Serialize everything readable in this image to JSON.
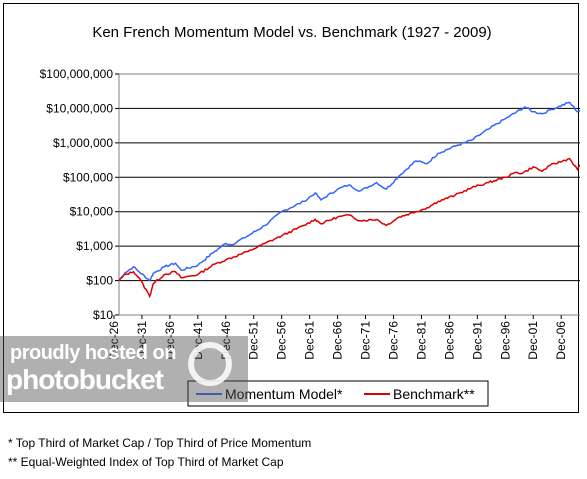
{
  "chart_data": {
    "type": "line",
    "title": "Ken French Momentum Model vs. Benchmark (1927 - 2009)",
    "xlabel": "",
    "ylabel": "",
    "y_scale": "log",
    "ylim": [
      10,
      100000000
    ],
    "y_ticks": [
      10,
      100,
      1000,
      10000,
      100000,
      1000000,
      10000000,
      100000000
    ],
    "y_tick_labels": [
      "$10",
      "$100",
      "$1,000",
      "$10,000",
      "$100,000",
      "$1,000,000",
      "$10,000,000",
      "$100,000,000"
    ],
    "x_ticks": [
      1926,
      1931,
      1936,
      1941,
      1946,
      1951,
      1956,
      1961,
      1966,
      1971,
      1976,
      1981,
      1986,
      1991,
      1996,
      2001,
      2006
    ],
    "x_tick_labels": [
      "Dec-26",
      "Dec-31",
      "Dec-36",
      "Dec-41",
      "Dec-46",
      "Dec-51",
      "Dec-56",
      "Dec-61",
      "Dec-66",
      "Dec-71",
      "Dec-76",
      "Dec-81",
      "Dec-86",
      "Dec-91",
      "Dec-96",
      "Dec-01",
      "Dec-06"
    ],
    "xlim": [
      1926.9,
      2009.9
    ],
    "grid": "horizontal",
    "legend_position": "bottom",
    "series": [
      {
        "name": "Momentum Model*",
        "color": "#3366ff",
        "x": [
          1926.9,
          1928,
          1929.5,
          1930.5,
          1932.4,
          1933,
          1935,
          1937,
          1938,
          1941,
          1944,
          1946,
          1947,
          1950,
          1953,
          1956,
          1960,
          1962,
          1963,
          1966,
          1968,
          1970,
          1973,
          1974.7,
          1977,
          1980,
          1982,
          1984,
          1987,
          1990,
          1993,
          1996,
          1999.5,
          2001,
          2002.6,
          2004,
          2007.5,
          2008.9,
          2009.9
        ],
        "y": [
          100,
          170,
          250,
          180,
          100,
          160,
          250,
          320,
          200,
          280,
          700,
          1200,
          1100,
          2000,
          4000,
          10000,
          20000,
          35000,
          22000,
          45000,
          60000,
          40000,
          70000,
          45000,
          110000,
          300000,
          250000,
          500000,
          800000,
          1200000,
          2500000,
          5000000,
          11000000,
          8000000,
          7000000,
          9000000,
          15000000,
          8000000,
          10000000
        ]
      },
      {
        "name": "Benchmark**",
        "color": "#dd0000",
        "x": [
          1926.9,
          1928,
          1929.5,
          1930.5,
          1932.4,
          1933,
          1935,
          1937,
          1938,
          1941,
          1944,
          1946,
          1950,
          1953,
          1956,
          1960,
          1962,
          1963,
          1966,
          1968,
          1970,
          1973,
          1974.7,
          1977,
          1980,
          1982,
          1984,
          1987,
          1990,
          1993,
          1996,
          1998,
          1999,
          2001,
          2002.6,
          2004,
          2007.5,
          2008.9,
          2009.9
        ],
        "y": [
          100,
          150,
          180,
          120,
          35,
          80,
          150,
          180,
          120,
          150,
          300,
          400,
          700,
          1200,
          2000,
          4000,
          6000,
          4500,
          7000,
          8000,
          5500,
          6000,
          4000,
          7000,
          10000,
          13000,
          20000,
          30000,
          50000,
          70000,
          100000,
          140000,
          130000,
          200000,
          150000,
          220000,
          350000,
          170000,
          280000
        ]
      }
    ]
  },
  "footnotes": [
    "* Top Third of Market Cap / Top Third of Price Momentum",
    "** Equal-Weighted Index of Top Third of Market Cap"
  ],
  "watermark": {
    "line1": "proudly hosted on",
    "line2": "photobucket"
  }
}
